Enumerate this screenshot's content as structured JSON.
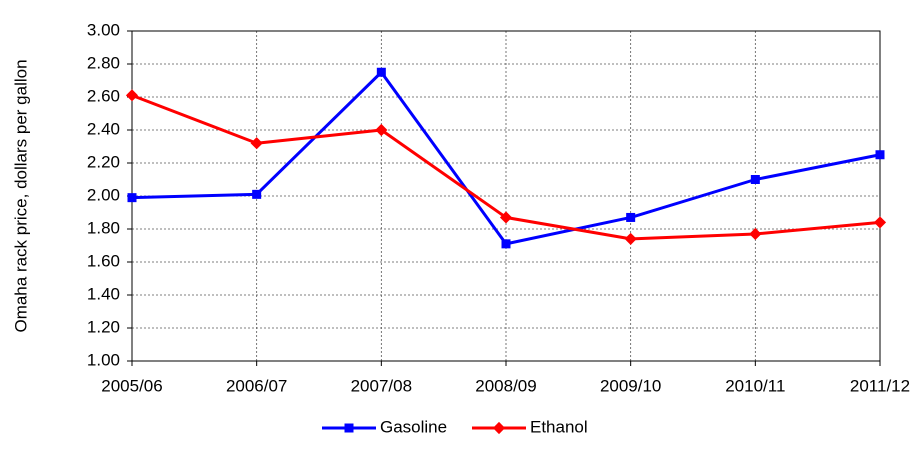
{
  "chart_data": {
    "type": "line",
    "y_label": "Omaha rack price, dollars per gallon",
    "categories": [
      "2005/06",
      "2006/07",
      "2007/08",
      "2008/09",
      "2009/10",
      "2010/11",
      "2011/12"
    ],
    "series": [
      {
        "name": "Gasoline",
        "color": "#0000ff",
        "marker": "square",
        "values": [
          1.99,
          2.01,
          2.75,
          1.71,
          1.87,
          2.1,
          2.25
        ]
      },
      {
        "name": "Ethanol",
        "color": "#ff0000",
        "marker": "diamond",
        "values": [
          2.61,
          2.32,
          2.4,
          1.87,
          1.74,
          1.77,
          1.84
        ]
      }
    ],
    "ylim": [
      1.0,
      3.0
    ],
    "yticks": [
      {
        "value": 1.0,
        "label": "1.00"
      },
      {
        "value": 1.2,
        "label": "1.20"
      },
      {
        "value": 1.4,
        "label": "1.40"
      },
      {
        "value": 1.6,
        "label": "1.60"
      },
      {
        "value": 1.8,
        "label": "1.80"
      },
      {
        "value": 2.0,
        "label": "2.00"
      },
      {
        "value": 2.2,
        "label": "2.20"
      },
      {
        "value": 2.4,
        "label": "2.40"
      },
      {
        "value": 2.6,
        "label": "2.60"
      },
      {
        "value": 2.8,
        "label": "2.80"
      },
      {
        "value": 3.0,
        "label": "3.00"
      }
    ],
    "grid": true,
    "legend": "bottom"
  }
}
